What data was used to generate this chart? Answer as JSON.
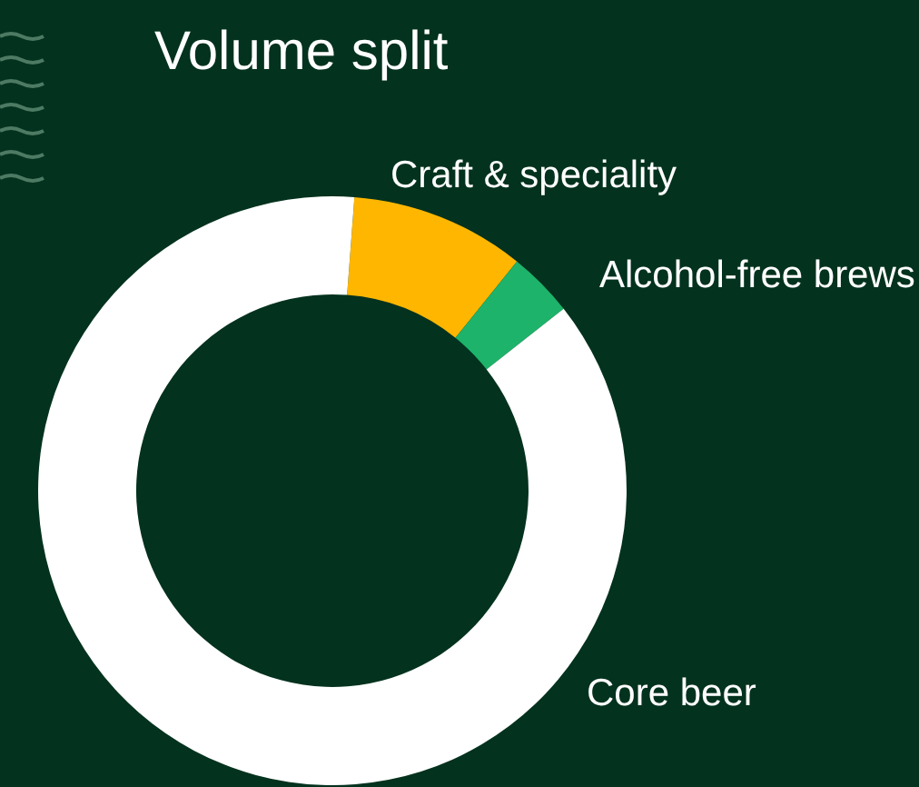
{
  "chart_data": {
    "type": "donut",
    "title": "Volume split",
    "categories": [
      "Craft & speciality",
      "Alcohol-free brews",
      "Core beer"
    ],
    "values": [
      9.6,
      3.6,
      86.8
    ],
    "colors": [
      "#ffb600",
      "#1db36a",
      "#ffffff"
    ]
  }
}
